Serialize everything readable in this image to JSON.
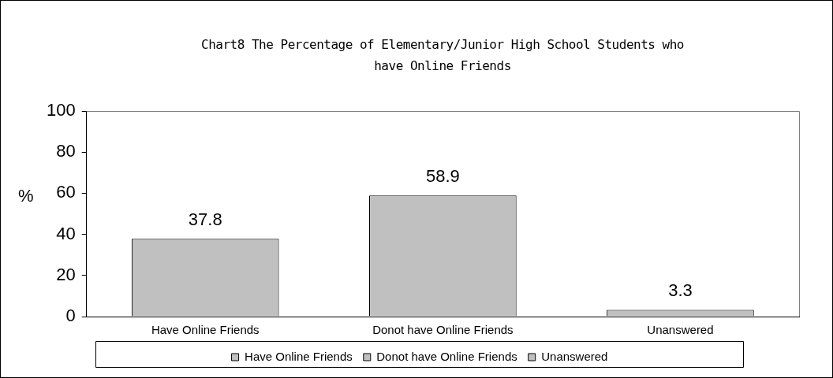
{
  "chart_data": {
    "type": "bar",
    "title": "Chart8 The Percentage of Elementary/Junior High School Students who have Online Friends",
    "ylabel": "%",
    "categories": [
      "Have Online Friends",
      "Donot have Online Friends",
      "Unanswered"
    ],
    "series": [
      {
        "name": "Have Online Friends",
        "color": "#c0c0c0",
        "values": [
          37.8,
          null,
          null
        ]
      },
      {
        "name": "Donot have Online Friends",
        "color": "#c0c0c0",
        "values": [
          null,
          58.9,
          null
        ]
      },
      {
        "name": "Unanswered",
        "color": "#c0c0c0",
        "values": [
          null,
          null,
          3.3
        ]
      }
    ],
    "ylim": [
      0,
      100
    ],
    "yticks": [
      0,
      20,
      40,
      60,
      80,
      100
    ],
    "grid": false,
    "legend": "bottom",
    "data_labels": true
  }
}
